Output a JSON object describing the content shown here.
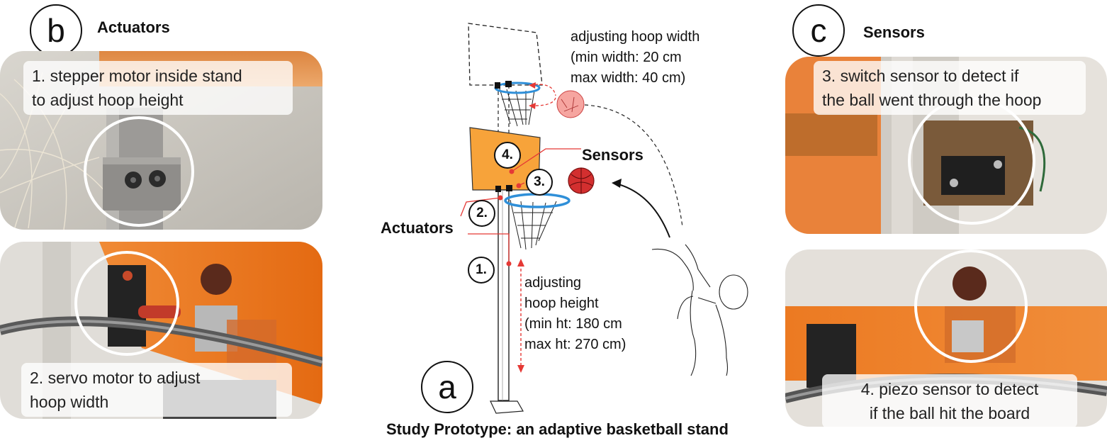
{
  "panel_a": {
    "letter": "a",
    "footer": "Study Prototype: an adaptive basketball stand",
    "width_label": [
      "adjusting hoop width",
      "(min width: 20 cm",
      "max  width: 40 cm)"
    ],
    "height_label": [
      "adjusting",
      "hoop height",
      "(min ht: 180 cm",
      "max ht: 270 cm)"
    ],
    "sensors_label": "Sensors",
    "actuators_label": "Actuators",
    "markers": [
      "1.",
      "2.",
      "3.",
      "4."
    ]
  },
  "panel_b": {
    "letter": "b",
    "title": "Actuators",
    "captions": [
      [
        "1. stepper motor inside stand",
        "to adjust hoop height"
      ],
      [
        "2. servo motor to adjust",
        "hoop width"
      ]
    ]
  },
  "panel_c": {
    "letter": "c",
    "title": "Sensors",
    "captions": [
      [
        "3. switch sensor to detect if",
        "the ball went through the hoop"
      ],
      [
        "4. piezo sensor to detect",
        "if the ball hit the board"
      ]
    ]
  },
  "colors": {
    "acrylic_orange": "#e8761e",
    "board_orange": "#f7a33a",
    "marker_red": "#e53935",
    "hoop_blue": "#2f8fd8",
    "ball_red": "#d32f2f"
  }
}
